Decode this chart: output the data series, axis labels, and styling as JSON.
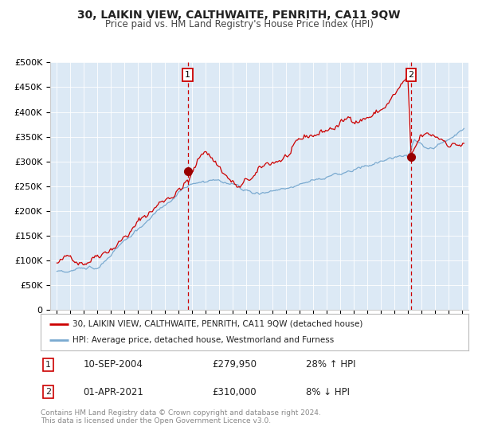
{
  "title": "30, LAIKIN VIEW, CALTHWAITE, PENRITH, CA11 9QW",
  "subtitle": "Price paid vs. HM Land Registry's House Price Index (HPI)",
  "legend_line1": "30, LAIKIN VIEW, CALTHWAITE, PENRITH, CA11 9QW (detached house)",
  "legend_line2": "HPI: Average price, detached house, Westmorland and Furness",
  "annotation1_date": "10-SEP-2004",
  "annotation1_price": "£279,950",
  "annotation1_hpi": "28% ↑ HPI",
  "annotation2_date": "01-APR-2021",
  "annotation2_price": "£310,000",
  "annotation2_hpi": "8% ↓ HPI",
  "copyright": "Contains HM Land Registry data © Crown copyright and database right 2024.\nThis data is licensed under the Open Government Licence v3.0.",
  "sale1_date_num": 2004.7,
  "sale1_price": 279950,
  "sale2_date_num": 2021.25,
  "sale2_price": 310000,
  "xlim": [
    1994.5,
    2025.5
  ],
  "ylim": [
    0,
    500000
  ],
  "background_color": "#dce9f5",
  "red_line_color": "#cc0000",
  "blue_line_color": "#7aaad0",
  "vline_color": "#cc0000",
  "dot_color": "#990000",
  "title_fontsize": 10,
  "subtitle_fontsize": 8.5
}
